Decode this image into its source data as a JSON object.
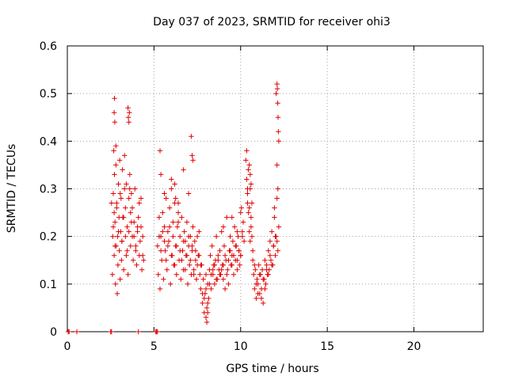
{
  "chart_data": {
    "type": "scatter",
    "title": "Day 037 of 2023, SRMTID for receiver ohi3",
    "xlabel": "GPS time / hours",
    "ylabel": "SRMTID / TECUs",
    "xlim": [
      0,
      24
    ],
    "ylim": [
      0,
      0.6
    ],
    "xticks": [
      0,
      5,
      10,
      15,
      20
    ],
    "yticks": [
      0,
      0.1,
      0.2,
      0.3,
      0.4,
      0.5,
      0.6
    ],
    "xtick_labels": [
      "0",
      "5",
      "10",
      "15",
      "20"
    ],
    "ytick_labels": [
      "0",
      "0.1",
      "0.2",
      "0.3",
      "0.4",
      "0.5",
      "0.6"
    ],
    "grid": true,
    "marker": "+",
    "color": "#e00000",
    "series": [
      {
        "name": "ohi3",
        "x": [
          0.05,
          0.1,
          0.55,
          2.5,
          2.55,
          4.1,
          5.1,
          5.15,
          5.2,
          2.55,
          2.6,
          2.62,
          2.65,
          2.68,
          2.7,
          2.72,
          2.75,
          2.78,
          2.8,
          2.82,
          2.85,
          2.88,
          2.9,
          2.92,
          2.95,
          2.98,
          3.0,
          3.02,
          3.05,
          3.08,
          3.1,
          3.12,
          3.15,
          3.18,
          3.2,
          3.25,
          3.3,
          3.35,
          3.4,
          3.45,
          3.5,
          3.55,
          3.6,
          3.65,
          3.7,
          3.75,
          3.8,
          3.85,
          3.9,
          3.95,
          4.0,
          4.05,
          4.1,
          4.15,
          4.2,
          4.25,
          4.3,
          4.35,
          4.4,
          2.65,
          2.7,
          2.75,
          2.85,
          2.95,
          3.05,
          3.15,
          3.25,
          3.35,
          3.45,
          3.55,
          3.65,
          3.75,
          3.85,
          3.95,
          4.05,
          4.15,
          4.25,
          4.35,
          2.7,
          2.72,
          2.74,
          3.5,
          3.52,
          3.55,
          3.58,
          2.8,
          3.3,
          3.4,
          3.6,
          3.7,
          5.2,
          5.25,
          5.3,
          5.35,
          5.4,
          5.45,
          5.5,
          5.55,
          5.6,
          5.65,
          5.7,
          5.75,
          5.8,
          5.85,
          5.9,
          5.95,
          6.0,
          6.05,
          6.1,
          6.15,
          6.2,
          6.25,
          6.3,
          6.35,
          6.4,
          6.45,
          6.5,
          6.55,
          6.6,
          6.65,
          6.7,
          6.75,
          6.8,
          6.85,
          6.9,
          6.95,
          7.0,
          7.05,
          7.1,
          7.15,
          7.2,
          7.25,
          7.3,
          7.35,
          7.4,
          7.45,
          7.5,
          7.55,
          7.6,
          7.65,
          7.7,
          5.3,
          5.4,
          5.5,
          5.6,
          5.7,
          5.8,
          5.9,
          6.0,
          6.1,
          6.2,
          6.3,
          6.4,
          6.5,
          6.6,
          6.7,
          6.8,
          6.9,
          7.0,
          7.1,
          7.2,
          7.3,
          7.4,
          7.5,
          7.6,
          5.35,
          5.4,
          6.2,
          6.25,
          6.7,
          7.15,
          7.2,
          7.25,
          7.0,
          6.0,
          5.6,
          6.4,
          7.7,
          7.75,
          7.8,
          7.85,
          7.9,
          7.95,
          8.0,
          8.05,
          8.1,
          8.15,
          8.2,
          8.25,
          8.3,
          8.35,
          8.4,
          8.45,
          8.5,
          8.55,
          8.6,
          8.65,
          8.7,
          8.75,
          8.8,
          8.85,
          8.9,
          8.95,
          9.0,
          9.05,
          9.1,
          9.15,
          9.2,
          9.25,
          9.3,
          9.35,
          9.4,
          9.45,
          9.5,
          9.55,
          9.6,
          9.65,
          9.7,
          9.75,
          9.8,
          9.85,
          9.9,
          9.95,
          10.0,
          10.05,
          10.1,
          10.15,
          10.2,
          7.8,
          7.9,
          8.0,
          8.1,
          8.2,
          8.3,
          8.4,
          8.5,
          8.6,
          8.7,
          8.8,
          8.9,
          9.0,
          9.1,
          9.2,
          9.3,
          9.4,
          9.5,
          9.6,
          9.7,
          9.8,
          9.9,
          10.0,
          10.1,
          8.0,
          8.05,
          8.1,
          9.0,
          9.5,
          9.8,
          10.0,
          10.3,
          10.35,
          10.4,
          10.45,
          10.5,
          10.55,
          10.6,
          10.65,
          10.7,
          10.75,
          10.8,
          10.85,
          10.9,
          10.95,
          11.0,
          11.05,
          11.1,
          11.15,
          11.2,
          11.25,
          11.3,
          11.35,
          11.4,
          11.45,
          11.5,
          11.55,
          11.6,
          11.65,
          11.7,
          11.75,
          11.8,
          11.85,
          11.9,
          11.95,
          12.0,
          12.05,
          12.1,
          12.15,
          12.2,
          10.35,
          10.4,
          10.45,
          10.5,
          10.55,
          10.6,
          10.65,
          10.7,
          10.8,
          10.9,
          11.0,
          11.1,
          11.2,
          11.3,
          11.4,
          11.5,
          11.6,
          11.7,
          11.8,
          11.9,
          12.0,
          12.1,
          10.5,
          10.55,
          10.6,
          10.4,
          12.1,
          12.12,
          12.14,
          12.16,
          12.18,
          12.2,
          12.05,
          12.1,
          12.15,
          11.95
        ],
        "y": [
          0,
          0,
          0,
          0,
          0,
          0,
          0,
          0,
          0,
          0.27,
          0.12,
          0.2,
          0.29,
          0.38,
          0.16,
          0.33,
          0.23,
          0.1,
          0.35,
          0.18,
          0.26,
          0.08,
          0.2,
          0.14,
          0.31,
          0.24,
          0.17,
          0.36,
          0.11,
          0.21,
          0.28,
          0.15,
          0.19,
          0.34,
          0.24,
          0.13,
          0.3,
          0.2,
          0.16,
          0.22,
          0.12,
          0.28,
          0.33,
          0.18,
          0.23,
          0.26,
          0.15,
          0.2,
          0.3,
          0.17,
          0.14,
          0.22,
          0.24,
          0.16,
          0.19,
          0.28,
          0.13,
          0.2,
          0.15,
          0.22,
          0.25,
          0.18,
          0.27,
          0.21,
          0.29,
          0.19,
          0.24,
          0.26,
          0.17,
          0.21,
          0.25,
          0.2,
          0.23,
          0.18,
          0.21,
          0.27,
          0.22,
          0.16,
          0.46,
          0.49,
          0.44,
          0.47,
          0.45,
          0.44,
          0.46,
          0.39,
          0.37,
          0.31,
          0.3,
          0.29,
          0.18,
          0.12,
          0.24,
          0.09,
          0.2,
          0.15,
          0.25,
          0.11,
          0.22,
          0.17,
          0.28,
          0.13,
          0.21,
          0.19,
          0.26,
          0.1,
          0.3,
          0.16,
          0.23,
          0.14,
          0.27,
          0.18,
          0.12,
          0.22,
          0.25,
          0.15,
          0.2,
          0.11,
          0.24,
          0.17,
          0.13,
          0.21,
          0.19,
          0.16,
          0.23,
          0.1,
          0.18,
          0.14,
          0.2,
          0.12,
          0.17,
          0.22,
          0.13,
          0.19,
          0.15,
          0.11,
          0.2,
          0.16,
          0.21,
          0.12,
          0.14,
          0.2,
          0.17,
          0.21,
          0.19,
          0.15,
          0.18,
          0.22,
          0.16,
          0.2,
          0.14,
          0.18,
          0.23,
          0.17,
          0.15,
          0.19,
          0.13,
          0.16,
          0.2,
          0.15,
          0.18,
          0.12,
          0.17,
          0.14,
          0.16,
          0.38,
          0.33,
          0.31,
          0.28,
          0.34,
          0.41,
          0.37,
          0.36,
          0.29,
          0.32,
          0.29,
          0.27,
          0.09,
          0.14,
          0.06,
          0.11,
          0.04,
          0.08,
          0.12,
          0.05,
          0.1,
          0.07,
          0.13,
          0.16,
          0.09,
          0.18,
          0.12,
          0.14,
          0.1,
          0.15,
          0.2,
          0.11,
          0.16,
          0.13,
          0.17,
          0.12,
          0.21,
          0.14,
          0.11,
          0.18,
          0.09,
          0.15,
          0.24,
          0.13,
          0.1,
          0.17,
          0.2,
          0.14,
          0.16,
          0.19,
          0.12,
          0.22,
          0.15,
          0.18,
          0.13,
          0.2,
          0.17,
          0.14,
          0.16,
          0.26,
          0.21,
          0.23,
          0.19,
          0.08,
          0.07,
          0.09,
          0.06,
          0.1,
          0.12,
          0.13,
          0.14,
          0.11,
          0.15,
          0.12,
          0.13,
          0.14,
          0.16,
          0.12,
          0.15,
          0.17,
          0.14,
          0.16,
          0.18,
          0.15,
          0.17,
          0.16,
          0.2,
          0.03,
          0.02,
          0.04,
          0.22,
          0.24,
          0.21,
          0.25,
          0.36,
          0.32,
          0.29,
          0.34,
          0.26,
          0.3,
          0.22,
          0.2,
          0.15,
          0.12,
          0.09,
          0.13,
          0.07,
          0.11,
          0.1,
          0.14,
          0.08,
          0.12,
          0.09,
          0.13,
          0.06,
          0.11,
          0.15,
          0.1,
          0.14,
          0.12,
          0.17,
          0.13,
          0.19,
          0.15,
          0.21,
          0.14,
          0.18,
          0.24,
          0.16,
          0.2,
          0.28,
          0.17,
          0.22,
          0.38,
          0.3,
          0.25,
          0.21,
          0.19,
          0.24,
          0.27,
          0.17,
          0.14,
          0.1,
          0.08,
          0.12,
          0.07,
          0.11,
          0.09,
          0.13,
          0.12,
          0.16,
          0.14,
          0.18,
          0.2,
          0.19,
          0.35,
          0.33,
          0.31,
          0.27,
          0.52,
          0.51,
          0.48,
          0.45,
          0.42,
          0.4,
          0.5,
          0.35,
          0.3,
          0.26
        ]
      }
    ]
  }
}
